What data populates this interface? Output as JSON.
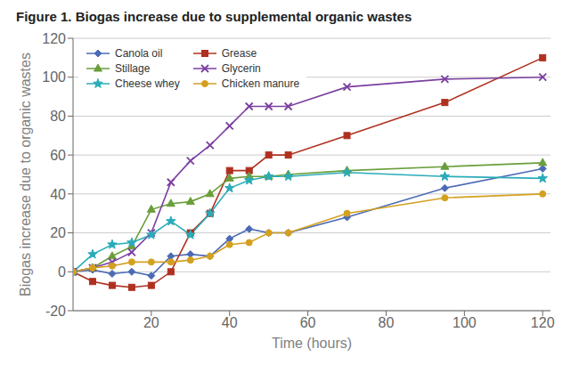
{
  "chart_data": {
    "type": "line",
    "title": "Figure 1. Biogas increase due to supplemental organic wastes",
    "xlabel": "Time (hours)",
    "ylabel": "Biogas increase due to organic wastes",
    "xlim": [
      0,
      122
    ],
    "ylim": [
      -20,
      120
    ],
    "xticks": [
      20,
      40,
      60,
      80,
      100,
      120
    ],
    "yticks": [
      -20,
      0,
      20,
      40,
      60,
      80,
      100,
      120
    ],
    "grid": "y",
    "legend": "upper left",
    "x": [
      0,
      5,
      10,
      15,
      20,
      25,
      30,
      35,
      40,
      45,
      50,
      55,
      70,
      95,
      120
    ],
    "series": [
      {
        "name": "Canola oil",
        "color": "#4c6bb5",
        "marker": "diamond",
        "values": [
          0,
          1,
          -1,
          0,
          -2,
          8,
          9,
          8,
          17,
          22,
          20,
          20,
          28,
          43,
          53
        ]
      },
      {
        "name": "Grease",
        "color": "#b03020",
        "marker": "square",
        "values": [
          0,
          -5,
          -7,
          -8,
          -7,
          0,
          20,
          30,
          52,
          52,
          60,
          60,
          70,
          87,
          110
        ]
      },
      {
        "name": "Stillage",
        "color": "#6a9e3a",
        "marker": "triangle",
        "values": [
          0,
          2,
          8,
          13,
          32,
          35,
          36,
          40,
          48,
          49,
          49,
          50,
          52,
          54,
          56
        ]
      },
      {
        "name": "Glycerin",
        "color": "#7b3fa0",
        "marker": "x",
        "values": [
          0,
          2,
          5,
          10,
          20,
          46,
          57,
          65,
          75,
          85,
          85,
          85,
          95,
          99,
          100
        ]
      },
      {
        "name": "Cheese whey",
        "color": "#2aacb8",
        "marker": "star",
        "values": [
          0,
          9,
          14,
          15,
          19,
          26,
          19,
          30,
          43,
          47,
          49,
          49,
          51,
          49,
          48
        ]
      },
      {
        "name": "Chicken manure",
        "color": "#d4a020",
        "marker": "circle",
        "values": [
          0,
          2,
          3,
          5,
          5,
          5,
          6,
          8,
          14,
          15,
          20,
          20,
          30,
          38,
          40
        ]
      }
    ]
  }
}
